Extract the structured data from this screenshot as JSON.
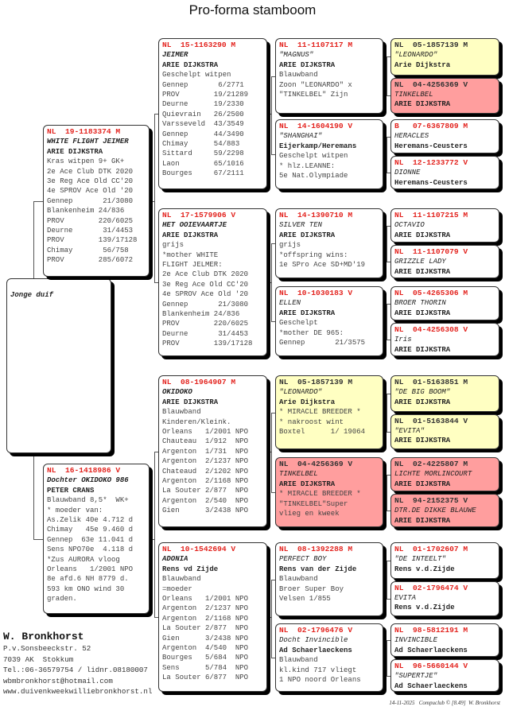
{
  "title": "Pro-forma stamboom",
  "subject": {
    "label": "Jonge duif"
  },
  "gen1": [
    {
      "ring": "NL  19-1183374 M",
      "name": "WHITE FLIGHT JEIMER",
      "owner": "ARIE DIJKSTRA",
      "lines": [
        "Kras witpen 9+ GK+",
        "2e Ace Club DTK 2020",
        "3e Reg Ace Old CC'20",
        "4e SPROV Ace Old '20",
        "Gennep       21/3080",
        "Blankenheim 24/836",
        "PROV        220/6025",
        "Deurne       31/4453",
        "PROV        139/17128",
        "Chimay       56/758",
        "PROV        285/6072"
      ]
    },
    {
      "ring": "NL  16-1418986 V",
      "name": "Dochter OKIDOKO 986",
      "owner": "PETER CRANS",
      "lines": [
        "Blauwband 8,5*  WK+",
        "* moeder van:",
        "As.Zelik 40e 4.712 d",
        "Chimay   45e 9.460 d",
        "Gennep  63e 11.041 d",
        "Sens NPO70e  4.118 d",
        "*Zus AURORA vloog",
        "Orleans   1/2001 NPO",
        "8e afd.6 NH 8779 d.",
        "593 km ONO wind 30",
        "graden."
      ]
    }
  ],
  "gen2": [
    {
      "ring": "NL  15-1163290 M",
      "name": "JEIMER",
      "owner": "ARIE DIJKSTRA",
      "lines": [
        "Geschelpt witpen",
        "Gennep       6/2771",
        "PROV        19/21289",
        "Deurne      19/2330",
        "Quievrain   26/2500",
        "Varsseveld  43/3549",
        "Gennep      44/3490",
        "Chimay      54/883",
        "Sittard     59/2298",
        "Laon        65/1016",
        "Bourges     67/2111"
      ]
    },
    {
      "ring": "NL  17-1579906 V",
      "name": "HET OOIEVAARTJE",
      "owner": "ARIE DIJKSTRA",
      "lines": [
        "grijs",
        "*mother WHITE",
        "FLIGHT JELMER:",
        "2e Ace Club DTK 2020",
        "3e Reg Ace Old CC'20",
        "4e SPROV Ace Old '20",
        "Gennep       21/3080",
        "Blankenheim 24/836",
        "PROV        220/6025",
        "Deurne       31/4453",
        "PROV        139/17128"
      ]
    },
    {
      "ring": "NL  08-1964907 M",
      "name": "OKIDOKO",
      "owner": "ARIE DIJKSTRA",
      "lines": [
        "Blauwband",
        "Kinderen/Kleink.",
        "Orleans   1/2001 NPO",
        "Chauteau  1/912  NPO",
        "Argenton  1/731  NPO",
        "Argenton  2/1237 NPO",
        "Chateaud  2/1202 NPO",
        "Argenton  2/1168 NPO",
        "La Souter 2/877  NPO",
        "Argenton  2/540  NPO",
        "Gien      3/2438 NPO"
      ]
    },
    {
      "ring": "NL  10-1542694 V",
      "name": "ADONIA",
      "owner": "Rens vd Zijde",
      "lines": [
        "Blauwband",
        "=moeder",
        "Orleans   1/2001 NPO",
        "Argenton  2/1237 NPO",
        "Argenton  2/1168 NPO",
        "La Souter 2/877  NPO",
        "Gien      3/2438 NPO",
        "Argenton  4/540  NPO",
        "Bourges   5/684  NPO",
        "Sens      5/784  NPO",
        "La Souter 6/877  NPO"
      ]
    }
  ],
  "gen3": [
    {
      "ring": "NL  11-1107117 M",
      "name": "\"MAGNUS\"",
      "owner": "ARIE DIJKSTRA",
      "lines": [
        "Blauwband",
        "Zoon \"LEONARDO\" x",
        "\"TINKELBEL\" Zijn"
      ]
    },
    {
      "ring": "NL  14-1604190 V",
      "name": "\"SHANGHAI\"",
      "owner": "Eijerkamp/Heremans",
      "lines": [
        "Geschelpt witpen",
        "* hlz.LEANNE:",
        "5e Nat.Olympiade"
      ]
    },
    {
      "ring": "NL  14-1390710 M",
      "name": "SILVER TEN",
      "owner": "ARIE DIJKSTRA",
      "lines": [
        "grijs",
        "*offspring wins:",
        "1e SPro Ace SD+MD'19"
      ]
    },
    {
      "ring": "NL  10-1030183 V",
      "name": "ELLEN",
      "owner": "ARIE DIJKSTRA",
      "lines": [
        "Geschelpt",
        "*mother DE 965:",
        "Gennep       21/3575"
      ]
    },
    {
      "ring": "NL  05-1857139 M",
      "name": "\"LEONARDO\"",
      "owner": "Arie Dijkstra",
      "lines": [
        "* MIRACLE BREEDER *",
        "* nakroost wint",
        "Boxtel      1/ 19064"
      ],
      "style": "yellow"
    },
    {
      "ring": "NL  04-4256369 V",
      "name": "TINKELBEL",
      "owner": "ARIE DIJKSTRA",
      "lines": [
        "* MIRACLE BREEDER *",
        "\"TINKELBEL\"Super",
        "vlieg en kweek"
      ],
      "style": "pink"
    },
    {
      "ring": "NL  08-1392288 M",
      "name": "PERFECT BOY",
      "owner": "Rens van der Zijde",
      "lines": [
        "Blauwband",
        "Broer Super Boy",
        "Velsen 1/855"
      ]
    },
    {
      "ring": "NL  02-1796476 V",
      "name": "Docht Invincible",
      "owner": "Ad Schaerlaeckens",
      "lines": [
        "Blauwband",
        "kl.kind 717 vliegt",
        "1 NPO noord Orleans"
      ]
    }
  ],
  "gen4": [
    {
      "ring": "NL  05-1857139 M",
      "name": "\"LEONARDO\"",
      "owner": "Arie Dijkstra",
      "style": "yellow"
    },
    {
      "ring": "NL  04-4256369 V",
      "name": "TINKELBEL",
      "owner": "ARIE DIJKSTRA",
      "style": "pink"
    },
    {
      "ring": "B   07-6367809 M",
      "name": "HERACLES",
      "owner": "Heremans-Ceusters"
    },
    {
      "ring": "NL  12-1233772 V",
      "name": "DIONNE",
      "owner": "Heremans-Ceusters"
    },
    {
      "ring": "NL  11-1107215 M",
      "name": "OCTAVIO",
      "owner": "ARIE DIJKSTRA"
    },
    {
      "ring": "NL  11-1107079 V",
      "name": "GRIZZLE LADY",
      "owner": "ARIE DIJKSTRA"
    },
    {
      "ring": "NL  05-4265306 M",
      "name": "BROER THORIN",
      "owner": "ARIE DIJKSTRA"
    },
    {
      "ring": "NL  04-4256308 V",
      "name": "Iris",
      "owner": "ARIE DIJKSTRA"
    },
    {
      "ring": "NL  01-5163851 M",
      "name": "\"DE BIG BOOM\"",
      "owner": "ARIE DIJKSTRA",
      "style": "yellow"
    },
    {
      "ring": "NL  01-5163844 V",
      "name": "\"EVITA\"",
      "owner": "ARIE DIJKSTRA",
      "style": "yellow"
    },
    {
      "ring": "NL  02-4225807 M",
      "name": "LICHTE MORLINCOURT",
      "owner": "ARIE DIJKSTRA",
      "style": "pink"
    },
    {
      "ring": "NL  94-2152375 V",
      "name": "DTR.DE DIKKE BLAUWE",
      "owner": "ARIE DIJKSTRA",
      "style": "pink"
    },
    {
      "ring": "NL  01-1702607 M",
      "name": "\"DE INTEELT\"",
      "owner": "Rens v.d.Zijde"
    },
    {
      "ring": "NL  02-1796474 V",
      "name": "EVITA",
      "owner": "Rens v.d.Zijde"
    },
    {
      "ring": "NL  98-5812191 M",
      "name": "INVINCIBLE",
      "owner": "Ad Schaerlaeckens"
    },
    {
      "ring": "NL  96-5660144 V",
      "name": "\"SUPERTJE\"",
      "owner": "Ad Schaerlaeckens"
    }
  ],
  "breeder": {
    "name": "W. Bronkhorst",
    "address": "P.v.Sonsbeeckstr. 52",
    "city": "7039 AK  Stokkum",
    "phone": "Tel.:06-36579754 / lidnr.08180007",
    "email": "wbmbronkhorst@hotmail.com",
    "website": "www.duivenkweekwilliebronkhorst.nl"
  },
  "footer": "14-11-2025   Compuclub © [8.49]  W. Bronkhorst",
  "colors": {
    "ring_red": "#e3241f",
    "yellow": "#ffffc2",
    "pink": "#ff9e9e"
  }
}
